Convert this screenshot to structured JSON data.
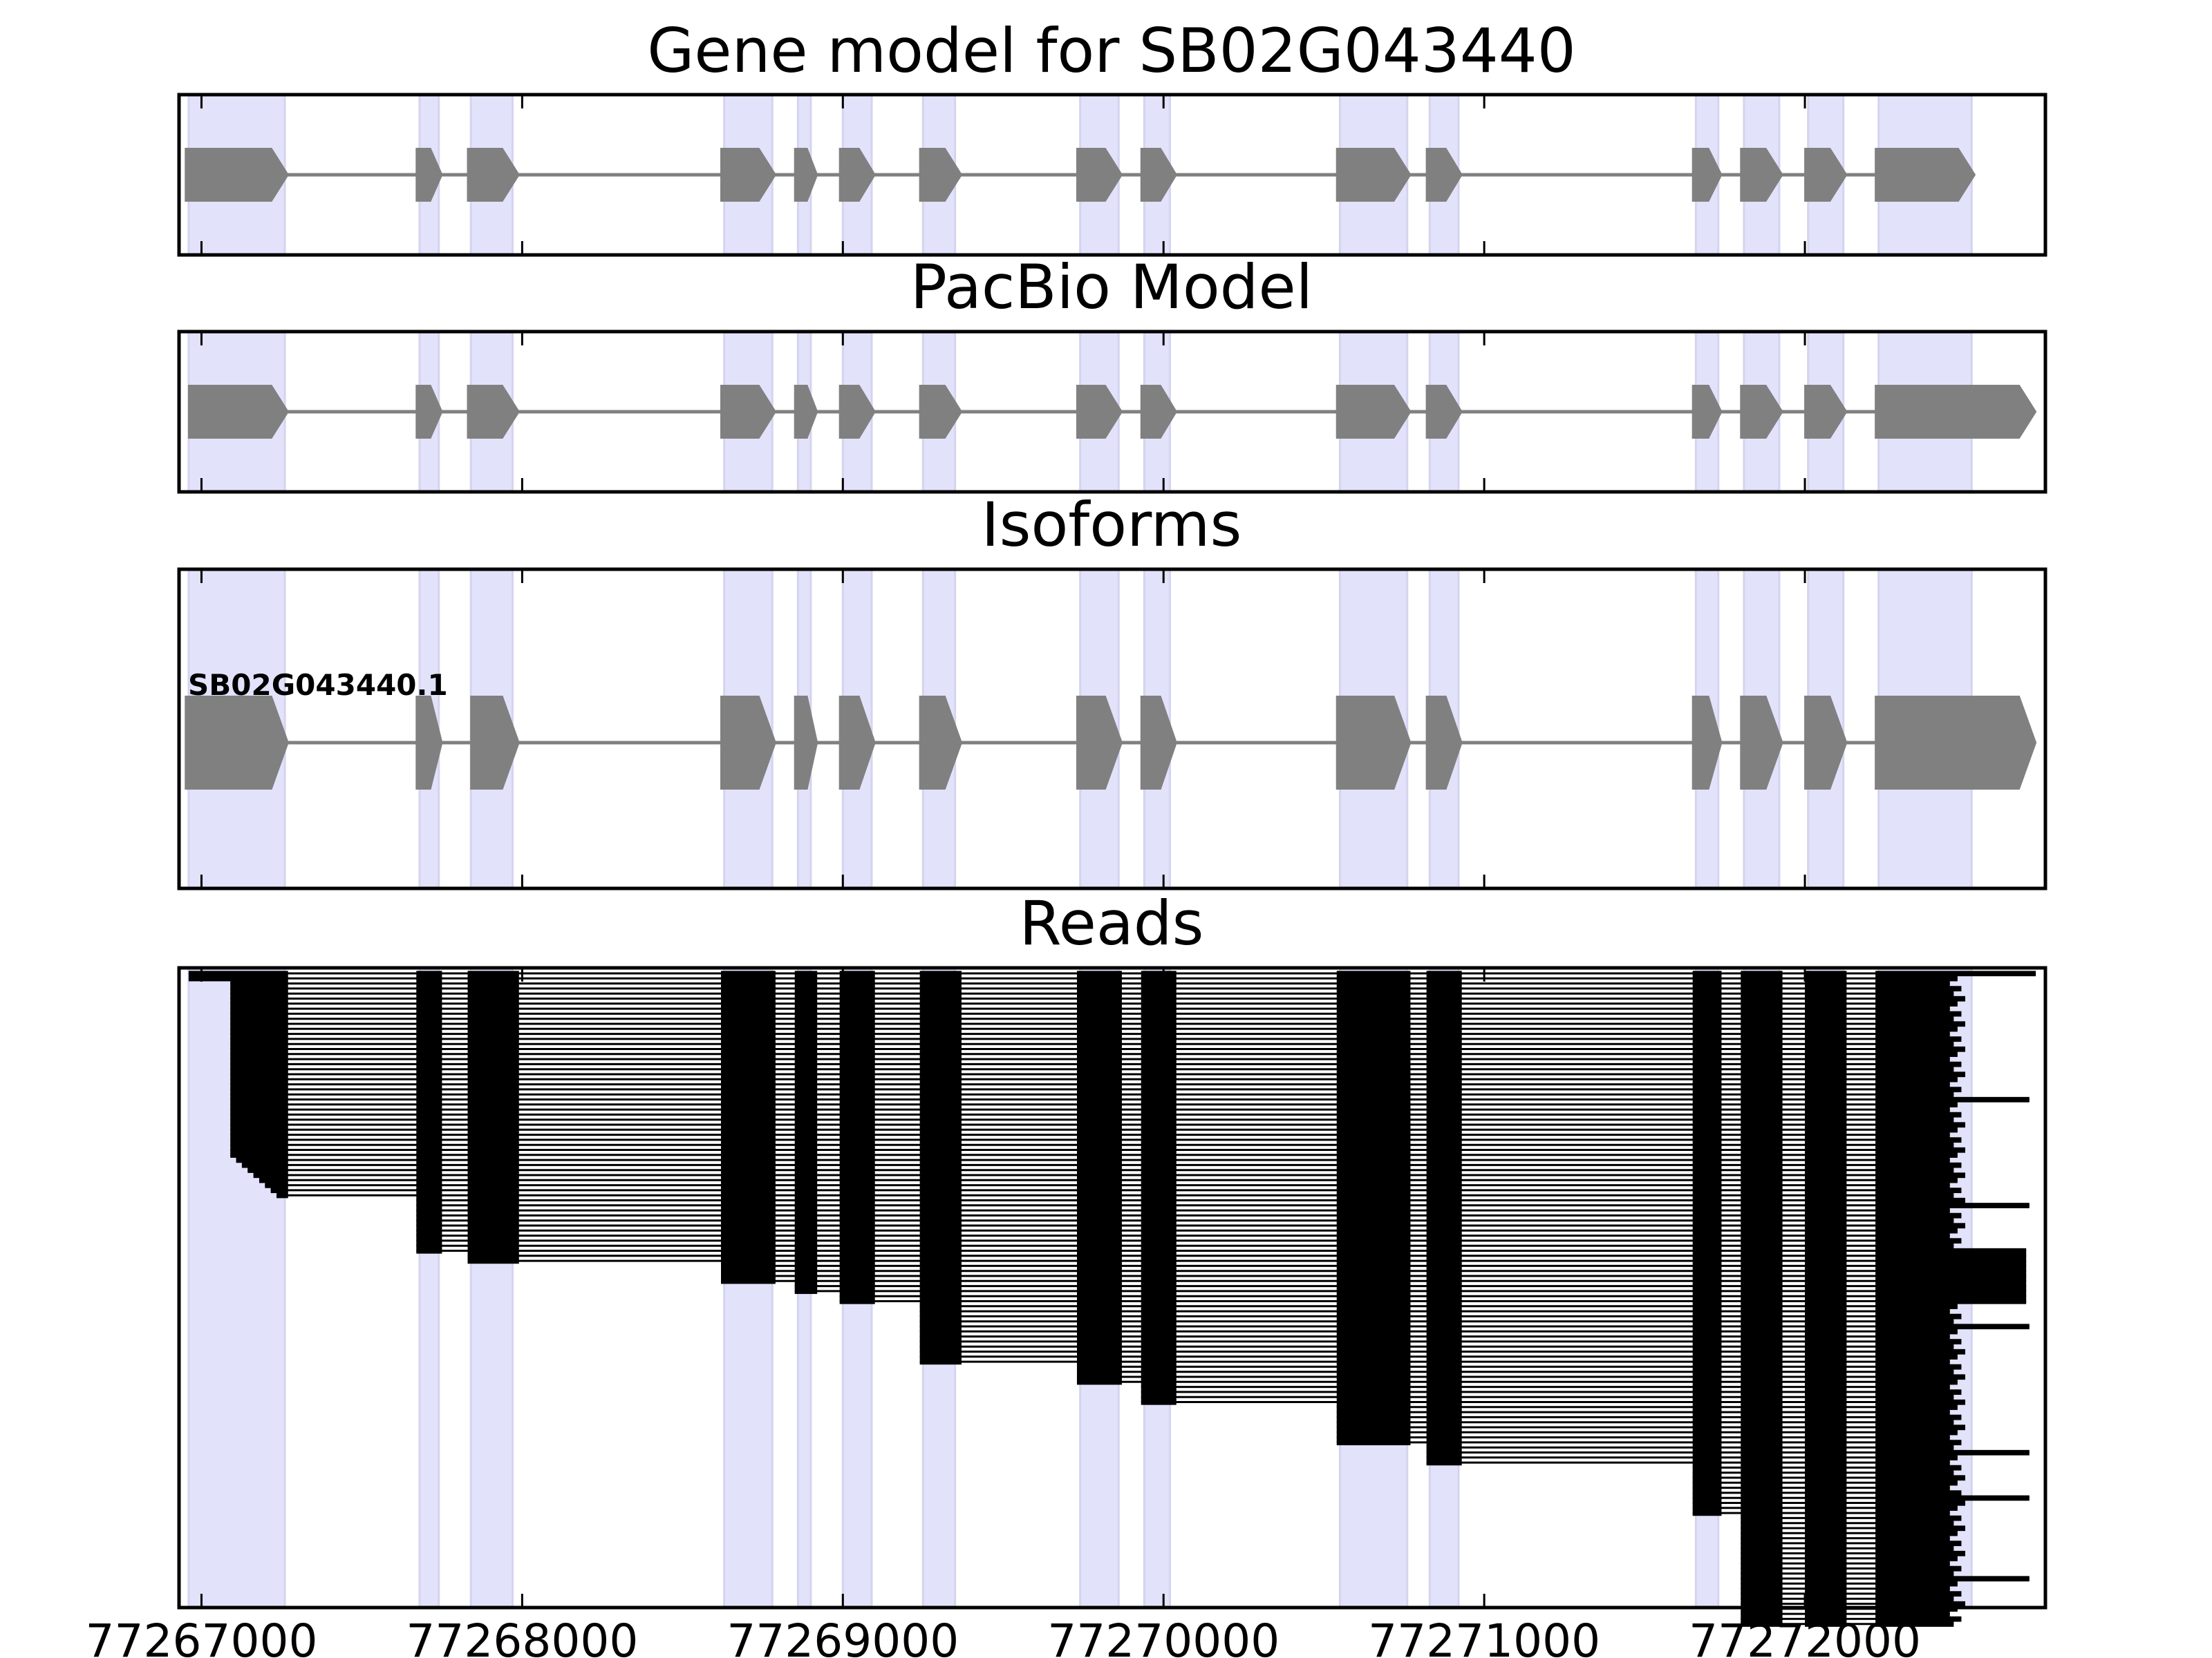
{
  "chart_data": [
    {
      "type": "gene-model",
      "title": "Gene model for SB02G043440",
      "xlim": [
        77266930,
        77272750
      ],
      "intron_color": "#808080",
      "exon_color": "#808080",
      "exons": [
        [
          77266950,
          77267270
        ],
        [
          77267670,
          77267750
        ],
        [
          77267830,
          77267990
        ],
        [
          77268620,
          77268790
        ],
        [
          77268850,
          77268920
        ],
        [
          77268990,
          77269100
        ],
        [
          77269240,
          77269370
        ],
        [
          77269730,
          77269870
        ],
        [
          77269930,
          77270040
        ],
        [
          77270540,
          77270770
        ],
        [
          77270820,
          77270930
        ],
        [
          77271650,
          77271740
        ],
        [
          77271800,
          77271930
        ],
        [
          77272000,
          77272130
        ],
        [
          77272220,
          77272530
        ]
      ]
    },
    {
      "type": "gene-model",
      "title": "PacBio Model",
      "xlim": [
        77266930,
        77272750
      ],
      "exons": [
        [
          77266960,
          77267270
        ],
        [
          77267670,
          77267750
        ],
        [
          77267830,
          77267990
        ],
        [
          77268620,
          77268790
        ],
        [
          77268850,
          77268920
        ],
        [
          77268990,
          77269100
        ],
        [
          77269240,
          77269370
        ],
        [
          77269730,
          77269870
        ],
        [
          77269930,
          77270040
        ],
        [
          77270540,
          77270770
        ],
        [
          77270820,
          77270930
        ],
        [
          77271650,
          77271740
        ],
        [
          77271800,
          77271930
        ],
        [
          77272000,
          77272130
        ],
        [
          77272220,
          77272720
        ]
      ]
    },
    {
      "type": "gene-model",
      "title": "Isoforms",
      "xlim": [
        77266930,
        77272750
      ],
      "isoforms": [
        {
          "name": "SB02G043440.1",
          "exons": [
            [
              77266950,
              77267270
            ],
            [
              77267670,
              77267750
            ],
            [
              77267840,
              77267990
            ],
            [
              77268620,
              77268790
            ],
            [
              77268850,
              77268920
            ],
            [
              77268990,
              77269100
            ],
            [
              77269240,
              77269370
            ],
            [
              77269730,
              77269870
            ],
            [
              77269930,
              77270040
            ],
            [
              77270540,
              77270770
            ],
            [
              77270820,
              77270930
            ],
            [
              77271650,
              77271740
            ],
            [
              77271800,
              77271930
            ],
            [
              77272000,
              77272130
            ],
            [
              77272220,
              77272720
            ]
          ]
        }
      ]
    },
    {
      "type": "reads",
      "title": "Reads",
      "xlim": [
        77266930,
        77272750
      ],
      "read_color": "#000000",
      "read_count": 130,
      "ticks": [
        77267000,
        77268000,
        77269000,
        77270000,
        77271000,
        77272000
      ],
      "tick_labels": [
        "77267000",
        "77268000",
        "77269000",
        "77270000",
        "77271000",
        "77272000"
      ]
    }
  ],
  "highlight_regions": [
    [
      77266960,
      77267260
    ],
    [
      77267680,
      77267740
    ],
    [
      77267840,
      77267970
    ],
    [
      77268630,
      77268780
    ],
    [
      77268860,
      77268900
    ],
    [
      77269000,
      77269090
    ],
    [
      77269250,
      77269350
    ],
    [
      77269740,
      77269860
    ],
    [
      77269940,
      77270020
    ],
    [
      77270550,
      77270760
    ],
    [
      77270830,
      77270920
    ],
    [
      77271660,
      77271730
    ],
    [
      77271810,
      77271920
    ],
    [
      77272010,
      77272120
    ],
    [
      77272230,
      77272520
    ]
  ],
  "highlight_color": "#e2e2fb"
}
